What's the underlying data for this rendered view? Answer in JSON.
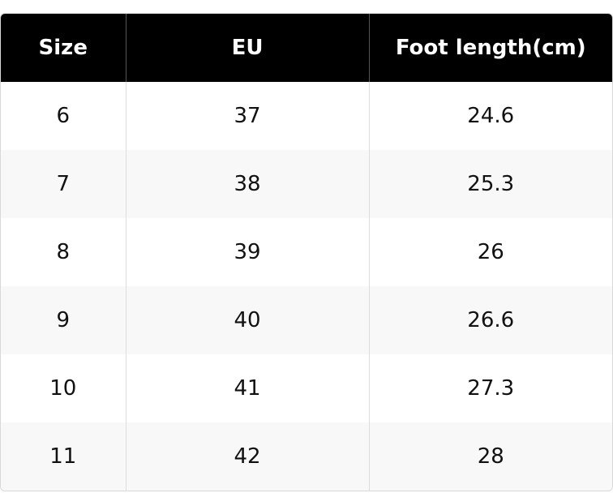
{
  "table": {
    "headers": [
      "Size",
      "EU",
      "Foot length(cm)"
    ],
    "rows": [
      [
        6,
        37,
        24.6
      ],
      [
        7,
        38,
        25.3
      ],
      [
        8,
        39,
        26
      ],
      [
        9,
        40,
        26.6
      ],
      [
        10,
        41,
        27.3
      ],
      [
        11,
        42,
        28
      ]
    ]
  }
}
